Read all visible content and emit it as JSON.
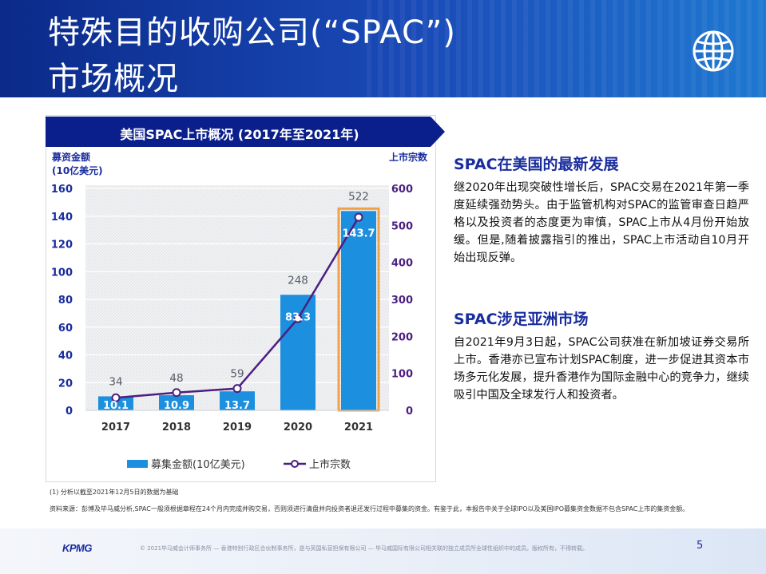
{
  "header": {
    "title_line1": "特殊目的收购公司(“SPAC”)",
    "title_line2": "市场概况",
    "icon": "globe-icon"
  },
  "chart_data": {
    "type": "bar",
    "title": "美国SPAC上市概况 (2017年至2021年)",
    "categories": [
      "2017",
      "2018",
      "2019",
      "2020",
      "2021"
    ],
    "ylabel_left": [
      "募资金额",
      "(10亿美元)"
    ],
    "ylabel_right": "上市宗数",
    "ylim_left": [
      0,
      160
    ],
    "ylim_right": [
      0,
      600
    ],
    "yticks_left": [
      "0",
      "20",
      "40",
      "60",
      "80",
      "100",
      "120",
      "140",
      "160"
    ],
    "yticks_right": [
      "0",
      "100",
      "200",
      "300",
      "400",
      "500",
      "600"
    ],
    "series": [
      {
        "name": "募集金额(10亿美元)",
        "kind": "bar",
        "axis": "left",
        "values": [
          10.1,
          10.9,
          13.7,
          83.3,
          143.7
        ],
        "labels": [
          "10.1",
          "10.9",
          "13.7",
          "83.3",
          "143.7"
        ]
      },
      {
        "name": "上市宗数",
        "kind": "line",
        "axis": "right",
        "values": [
          34,
          48,
          59,
          248,
          522
        ],
        "labels": [
          "34",
          "48",
          "59",
          "248",
          "522"
        ]
      }
    ],
    "grid": true,
    "legend_position": "bottom",
    "colors": {
      "bar": "#1c8fde",
      "line": "#4b1f80",
      "highlight": "#f0a24a",
      "axis_text": "#1a2d9e",
      "right_axis_text": "#4b1f80"
    }
  },
  "notes": {
    "note1": "(1) 分析以截至2021年12月5日的数据为基础",
    "note2": "资料来源：彭博及毕马威分析,SPAC一般须根据章程在24个月内完成并购交易，否则须进行清盘并向投资者退还发行过程中募集的资金。有鉴于此，本报告中关于全球IPO以及美国IPO募集资金数据不包含SPAC上市的集资金额。"
  },
  "sections": [
    {
      "title": "SPAC在美国的最新发展",
      "body": "继2020年出现突破性增长后，SPAC交易在2021年第一季度延续强劲势头。由于监管机构对SPAC的监管审查日趋严格以及投资者的态度更为审慎，SPAC上市从4月份开始放缓。但是,随着披露指引的推出，SPAC上市活动自10月开始出现反弹。"
    },
    {
      "title": "SPAC涉足亚洲市场",
      "body": "自2021年9月3日起，SPAC公司获准在新加坡证券交易所上市。香港亦已宣布计划SPAC制度，进一步促进其资本市场多元化发展，提升香港作为国际金融中心的竞争力，继续吸引中国及全球发行人和投资者。"
    }
  ],
  "footer": {
    "logo": "KPMG",
    "legal": "© 2021毕马威会计师事务所 — 香港特别行政区合伙制事务所，是与英国私营担保有限公司 — 毕马威国际有限公司相关联的独立成员所全球性组织中的成员。版权所有，不得转载。",
    "page_number": "5"
  }
}
